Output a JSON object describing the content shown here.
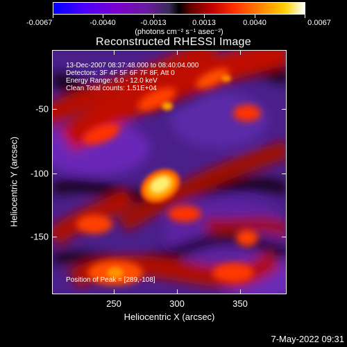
{
  "colorbar": {
    "labels": [
      "-0.0067",
      "-0.0040",
      "-0.0013",
      "0.0013",
      "0.0040",
      "0.0067"
    ],
    "units": "(photons cm⁻² s⁻¹ asec⁻²)"
  },
  "title": "Reconstructed RHESSI Image",
  "info": {
    "time": "13-Dec-2007 08:37:48.000 to 08:40:04.000",
    "detectors": "Detectors: 3F 4F 5F 6F 7F 8F, Att 0",
    "energy": "Energy Range: 6.0 - 12.0 keV",
    "clean": "Clean    Total counts: 1.51E+04",
    "peak": "Position of Peak = [289,-108]"
  },
  "axes": {
    "y_title": "Heliocentric Y (arcsec)",
    "x_title": "Heliocentric X (arcsec)",
    "y_ticks": [
      "-50",
      "-100",
      "-150"
    ],
    "x_ticks": [
      "250",
      "300",
      "350"
    ]
  },
  "timestamp": "7-May-2022 09:31",
  "colors": {
    "background": "#000000",
    "negative_low": "#0000ff",
    "negative_mid": "#6a1aa0",
    "positive_mid": "#ff3000",
    "positive_high": "#ffffff"
  }
}
